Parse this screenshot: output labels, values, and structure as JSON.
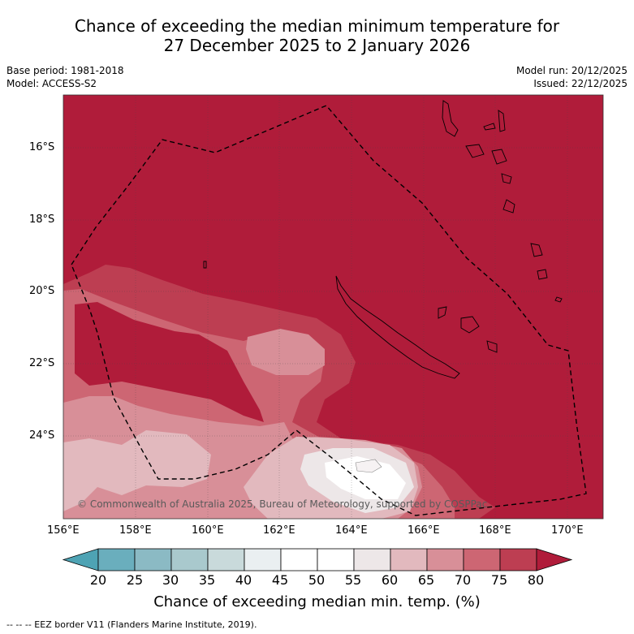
{
  "title": {
    "line1": "Chance of exceeding the median minimum temperature for",
    "line2": "27 December 2025 to 2 January 2026"
  },
  "meta": {
    "base_period": "Base period: 1981-2018",
    "model": "Model: ACCESS-S2",
    "model_run": "Model run: 20/12/2025",
    "issued": "Issued: 22/12/2025"
  },
  "map": {
    "lat_labels": [
      "16°S",
      "18°S",
      "20°S",
      "22°S",
      "24°S"
    ],
    "lon_labels": [
      "156°E",
      "158°E",
      "160°E",
      "162°E",
      "164°E",
      "166°E",
      "168°E",
      "170°E"
    ],
    "copyright": "© Commonwealth of Australia 2025, Bureau of Meteorology, supported by COSPPac"
  },
  "colorbar": {
    "ticks": [
      "20",
      "25",
      "30",
      "35",
      "40",
      "45",
      "50",
      "55",
      "60",
      "65",
      "70",
      "75",
      "80"
    ],
    "colors": [
      "#4ea3b4",
      "#6aaebd",
      "#8bbac4",
      "#a9c9cd",
      "#c9dadb",
      "#eaeff1",
      "#ffffff",
      "#ffffff",
      "#ede7e8",
      "#e2b9be",
      "#d88f98",
      "#cd6673",
      "#bd3e52",
      "#b01c3a"
    ],
    "title": "Chance of exceeding median min. temp. (%)"
  },
  "footnote": "--  --  -- EEZ border V11 (Flanders Marine Institute, 2019)."
}
